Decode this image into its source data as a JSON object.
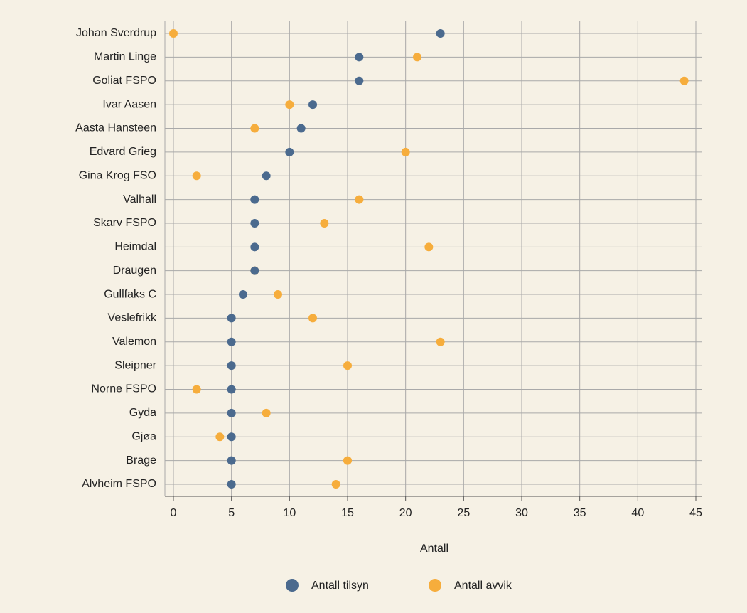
{
  "chart_data": {
    "type": "dot",
    "orientation": "horizontal",
    "categories": [
      "Johan Sverdrup",
      "Martin Linge",
      "Goliat FSPO",
      "Ivar Aasen",
      "Aasta Hansteen",
      "Edvard Grieg",
      "Gina Krog FSO",
      "Valhall",
      "Skarv FSPO",
      "Heimdal",
      "Draugen",
      "Gullfaks C",
      "Veslefrikk",
      "Valemon",
      "Sleipner",
      "Norne FSPO",
      "Gyda",
      "Gjøa",
      "Brage",
      "Alvheim FSPO"
    ],
    "series": [
      {
        "name": "Antall tilsyn",
        "color": "#4b6a8e",
        "values": [
          23,
          16,
          16,
          12,
          11,
          10,
          8,
          7,
          7,
          7,
          7,
          6,
          5,
          5,
          5,
          5,
          5,
          5,
          5,
          5
        ]
      },
      {
        "name": "Antall avvik",
        "color": "#f6ad3c",
        "values": [
          0,
          21,
          44,
          10,
          7,
          20,
          2,
          16,
          13,
          22,
          7,
          9,
          12,
          23,
          15,
          2,
          8,
          4,
          15,
          14
        ]
      }
    ],
    "x_label": "Antall",
    "xlim": [
      0,
      45
    ],
    "xticks": [
      0,
      5,
      10,
      15,
      20,
      25,
      30,
      35,
      40,
      45
    ],
    "grid": true,
    "legend": "bottom"
  }
}
